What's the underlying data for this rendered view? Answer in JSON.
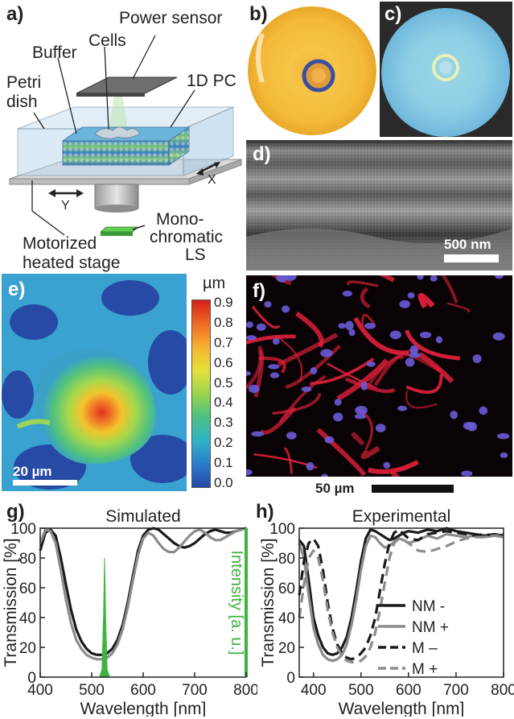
{
  "panels": {
    "a": {
      "label": "a)",
      "parts": {
        "power_sensor": "Power sensor",
        "cells": "Cells",
        "buffer": "Buffer",
        "petri_line1": "Petri",
        "petri_line2": "dish",
        "pc": "1D PC",
        "axis_x": "X",
        "axis_y": "Y",
        "ls_line1": "Mono-",
        "ls_line2": "chromatic",
        "ls_line3": "LS",
        "stage_line1": "Motorized",
        "stage_line2": "heated stage"
      }
    },
    "b": {
      "label": "b)"
    },
    "c": {
      "label": "c)"
    },
    "d": {
      "label": "d)",
      "scalebar": "500 nm"
    },
    "e": {
      "label": "e)",
      "colorbar_unit": "µm",
      "colorbar_ticks": [
        "0.9",
        "0.8",
        "0.7",
        "0.6",
        "0.5",
        "0.4",
        "0.3",
        "0.2",
        "0.1",
        "0.0"
      ],
      "scalebar": "20 µm"
    },
    "f": {
      "label": "f)",
      "scalebar": "50 µm"
    },
    "g": {
      "label": "g)"
    },
    "h": {
      "label": "h)"
    }
  },
  "colors": {
    "nm_minus": "#1a1a1a",
    "nm_plus": "#8c8c8c",
    "m_minus": "#1a1a1a",
    "m_plus": "#8c8c8c",
    "intensity": "#3fb33f"
  },
  "chart_data": [
    {
      "type": "line",
      "panel": "g",
      "title": "Simulated",
      "xlabel": "Wavelength [nm]",
      "ylabel": "Transmission [%]",
      "y2label": "Intensity [a. u.]",
      "xlim": [
        400,
        800
      ],
      "ylim": [
        0,
        100
      ],
      "xticks": [
        "400",
        "500",
        "600",
        "700",
        "800"
      ],
      "yticks": [
        "0",
        "20",
        "40",
        "60",
        "80",
        "100"
      ],
      "series": [
        {
          "style": "solid-black",
          "x": [
            400,
            410,
            420,
            430,
            440,
            450,
            460,
            470,
            480,
            490,
            500,
            510,
            520,
            530,
            540,
            550,
            560,
            570,
            580,
            590,
            600,
            610,
            620,
            630,
            640,
            650,
            660,
            670,
            680,
            690,
            700,
            710,
            720,
            730,
            740,
            750,
            760,
            770,
            780,
            790,
            800
          ],
          "y": [
            85,
            97,
            99,
            95,
            80,
            62,
            45,
            32,
            24,
            19,
            16,
            15,
            15,
            16,
            19,
            25,
            35,
            50,
            68,
            85,
            95,
            99,
            100,
            99,
            96,
            93,
            90,
            88,
            87,
            88,
            90,
            93,
            96,
            98,
            99,
            98,
            97,
            97,
            98,
            99,
            100
          ]
        },
        {
          "style": "solid-gray",
          "x": [
            400,
            410,
            420,
            430,
            440,
            450,
            460,
            470,
            480,
            490,
            500,
            510,
            520,
            530,
            540,
            550,
            560,
            570,
            580,
            590,
            600,
            610,
            620,
            630,
            640,
            650,
            660,
            670,
            680,
            690,
            700,
            710,
            720,
            730,
            740,
            750,
            760,
            770,
            780,
            790,
            800
          ],
          "y": [
            90,
            99,
            98,
            90,
            72,
            52,
            36,
            25,
            19,
            15,
            13,
            12,
            12,
            13,
            16,
            22,
            32,
            47,
            65,
            82,
            93,
            97,
            95,
            90,
            86,
            84,
            84,
            87,
            91,
            95,
            98,
            99,
            97,
            94,
            92,
            92,
            94,
            96,
            98,
            99,
            100
          ]
        },
        {
          "name": "Intensity",
          "style": "filled-green",
          "x": [
            515,
            520,
            523,
            525,
            527,
            530,
            535
          ],
          "y": [
            0,
            5,
            40,
            80,
            40,
            5,
            0
          ]
        }
      ]
    },
    {
      "type": "line",
      "panel": "h",
      "title": "Experimental",
      "xlabel": "Wavelength [nm]",
      "ylabel": "Transmission [%]",
      "xlim": [
        370,
        800
      ],
      "ylim": [
        0,
        100
      ],
      "xticks": [
        "400",
        "500",
        "600",
        "700",
        "800"
      ],
      "yticks": [
        "0",
        "20",
        "40",
        "60",
        "80",
        "100"
      ],
      "legend_position": "bottom-right",
      "series": [
        {
          "name": "NM -",
          "style": "solid-black",
          "x": [
            370,
            380,
            390,
            400,
            410,
            420,
            430,
            440,
            450,
            460,
            470,
            480,
            490,
            500,
            510,
            520,
            530,
            540,
            550,
            560,
            570,
            580,
            590,
            600,
            620,
            640,
            660,
            680,
            700,
            720,
            740,
            760,
            780,
            800
          ],
          "y": [
            92,
            88,
            65,
            40,
            28,
            20,
            16,
            15,
            16,
            20,
            27,
            40,
            58,
            78,
            93,
            99,
            98,
            96,
            94,
            92,
            93,
            95,
            97,
            98,
            97,
            99,
            98,
            100,
            98,
            97,
            96,
            95,
            96,
            95
          ]
        },
        {
          "name": "NM +",
          "style": "solid-gray",
          "x": [
            370,
            380,
            390,
            400,
            410,
            420,
            430,
            440,
            450,
            460,
            470,
            480,
            490,
            500,
            510,
            520,
            530,
            540,
            550,
            560,
            570,
            580,
            590,
            600,
            620,
            640,
            660,
            680,
            700,
            720,
            740,
            760,
            780,
            800
          ],
          "y": [
            90,
            80,
            55,
            33,
            22,
            15,
            12,
            11,
            12,
            15,
            22,
            35,
            52,
            72,
            88,
            95,
            94,
            90,
            87,
            88,
            91,
            93,
            92,
            90,
            92,
            95,
            93,
            96,
            95,
            94,
            95,
            94,
            95,
            94
          ]
        },
        {
          "name": "M –",
          "style": "dashed-black",
          "x": [
            370,
            380,
            390,
            400,
            410,
            420,
            430,
            440,
            450,
            460,
            470,
            480,
            490,
            500,
            510,
            520,
            530,
            540,
            550,
            560,
            570,
            580,
            590,
            600,
            620,
            640,
            660,
            680,
            700,
            720,
            740,
            760,
            780,
            800
          ],
          "y": [
            55,
            78,
            90,
            93,
            88,
            72,
            50,
            33,
            22,
            16,
            13,
            12,
            13,
            16,
            20,
            28,
            40,
            58,
            76,
            90,
            97,
            99,
            96,
            93,
            92,
            96,
            97,
            98,
            97,
            96,
            95,
            96,
            95,
            96
          ]
        },
        {
          "name": "M +",
          "style": "dashed-gray",
          "x": [
            370,
            380,
            390,
            400,
            410,
            420,
            430,
            440,
            450,
            460,
            470,
            480,
            490,
            500,
            510,
            520,
            530,
            540,
            550,
            560,
            570,
            580,
            590,
            600,
            620,
            640,
            660,
            680,
            700,
            720,
            740,
            760,
            780,
            800
          ],
          "y": [
            40,
            62,
            80,
            85,
            80,
            65,
            45,
            30,
            20,
            14,
            11,
            10,
            10,
            11,
            14,
            20,
            30,
            45,
            63,
            80,
            90,
            93,
            92,
            90,
            85,
            84,
            86,
            88,
            91,
            93,
            94,
            94,
            95,
            95
          ]
        }
      ]
    }
  ]
}
